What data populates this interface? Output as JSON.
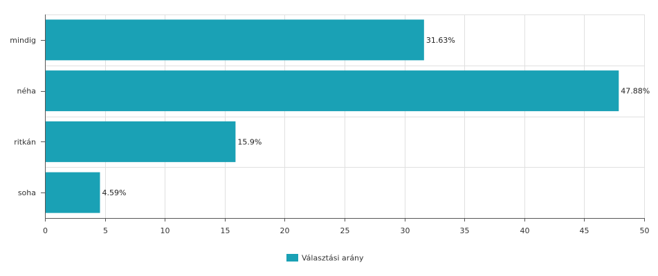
{
  "chart_data": {
    "type": "bar",
    "orientation": "horizontal",
    "categories": [
      "mindig",
      "néha",
      "ritkán",
      "soha"
    ],
    "series": [
      {
        "name": "Választási arány",
        "values": [
          31.63,
          47.88,
          15.9,
          4.59
        ],
        "labels": [
          "31.63%",
          "47.88%",
          "15.9%",
          "4.59%"
        ],
        "color": "#1aa1b5"
      }
    ],
    "xlim": [
      0,
      50
    ],
    "x_ticks": [
      0,
      5,
      10,
      15,
      20,
      25,
      30,
      35,
      40,
      45,
      50
    ],
    "grid": true,
    "legend_position": "bottom"
  },
  "colors": {
    "bar": "#1aa1b5",
    "grid": "#e0e0e0",
    "axis": "#555555"
  }
}
